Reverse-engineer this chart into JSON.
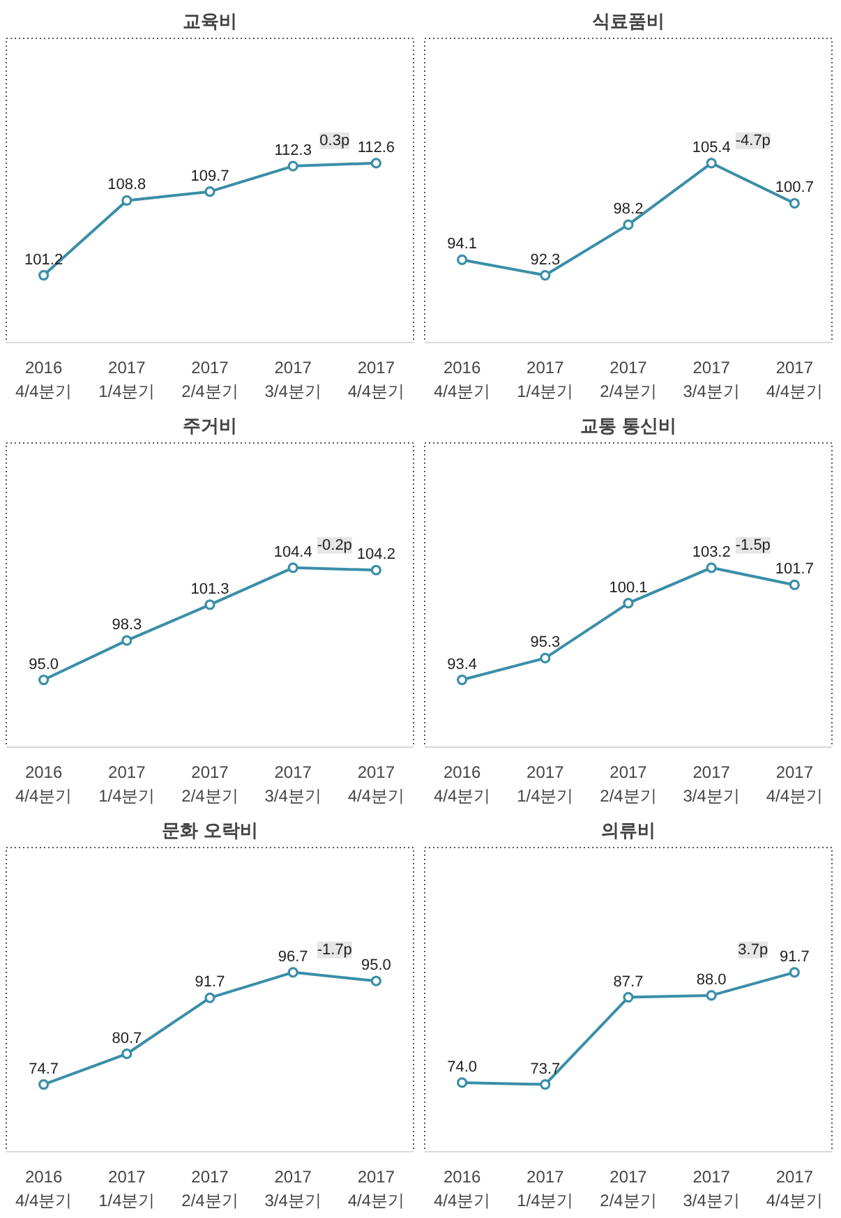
{
  "chart_data": [
    {
      "type": "line",
      "title": "교육비",
      "categories": [
        "2016\n4/4분기",
        "2017\n1/4분기",
        "2017\n2/4분기",
        "2017\n3/4분기",
        "2017\n4/4분기"
      ],
      "series": [
        {
          "color": "#3a8ea8",
          "values": [
            101.2,
            108.8,
            109.7,
            112.3,
            112.6
          ],
          "value_labels": [
            "101.2",
            "108.8",
            "109.7",
            "112.3",
            "112.6"
          ]
        }
      ],
      "marker": "circle",
      "tick_labels": "x",
      "annotations": [
        "0.3p"
      ]
    },
    {
      "type": "line",
      "title": "식료품비",
      "categories": [
        "2016\n4/4분기",
        "2017\n1/4분기",
        "2017\n2/4분기",
        "2017\n3/4분기",
        "2017\n4/4분기"
      ],
      "series": [
        {
          "color": "#3a8ea8",
          "values": [
            94.1,
            92.3,
            98.2,
            105.4,
            100.7
          ],
          "value_labels": [
            "94.1",
            "92.3",
            "98.2",
            "105.4",
            "100.7"
          ]
        }
      ],
      "marker": "circle",
      "tick_labels": "x",
      "annotations": [
        "-4.7p"
      ]
    },
    {
      "type": "line",
      "title": "주거비",
      "categories": [
        "2016\n4/4분기",
        "2017\n1/4분기",
        "2017\n2/4분기",
        "2017\n3/4분기",
        "2017\n4/4분기"
      ],
      "series": [
        {
          "color": "#3a8ea8",
          "values": [
            95.0,
            98.3,
            101.3,
            104.4,
            104.2
          ],
          "value_labels": [
            "95.0",
            "98.3",
            "101.3",
            "104.4",
            "104.2"
          ]
        }
      ],
      "marker": "circle",
      "tick_labels": "x",
      "annotations": [
        "-0.2p"
      ]
    },
    {
      "type": "line",
      "title": "교통 통신비",
      "categories": [
        "2016\n4/4분기",
        "2017\n1/4분기",
        "2017\n2/4분기",
        "2017\n3/4분기",
        "2017\n4/4분기"
      ],
      "series": [
        {
          "color": "#3a8ea8",
          "values": [
            93.4,
            95.3,
            100.1,
            103.2,
            101.7
          ],
          "value_labels": [
            "93.4",
            "95.3",
            "100.1",
            "103.2",
            "101.7"
          ]
        }
      ],
      "marker": "circle",
      "tick_labels": "x",
      "annotations": [
        "-1.5p"
      ]
    },
    {
      "type": "line",
      "title": "문화 오락비",
      "categories": [
        "2016\n4/4분기",
        "2017\n1/4분기",
        "2017\n2/4분기",
        "2017\n3/4분기",
        "2017\n4/4분기"
      ],
      "series": [
        {
          "color": "#3a8ea8",
          "values": [
            74.7,
            80.7,
            91.7,
            96.7,
            95.0
          ],
          "value_labels": [
            "74.7",
            "80.7",
            "91.7",
            "96.7",
            "95.0"
          ]
        }
      ],
      "marker": "circle",
      "tick_labels": "x",
      "annotations": [
        "-1.7p"
      ]
    },
    {
      "type": "line",
      "title": "의류비",
      "categories": [
        "2016\n4/4분기",
        "2017\n1/4분기",
        "2017\n2/4분기",
        "2017\n3/4분기",
        "2017\n4/4분기"
      ],
      "series": [
        {
          "color": "#3a8ea8",
          "values": [
            74.0,
            73.7,
            87.7,
            88.0,
            91.7
          ],
          "value_labels": [
            "74.0",
            "73.7",
            "87.7",
            "88.0",
            "91.7"
          ]
        }
      ],
      "marker": "circle",
      "tick_labels": "x",
      "annotations": [
        "3.7p"
      ]
    }
  ]
}
